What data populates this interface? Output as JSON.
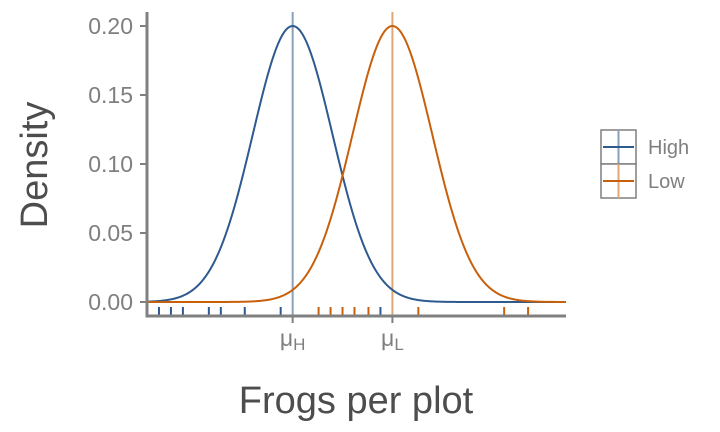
{
  "chart_data": {
    "type": "line",
    "title": "",
    "xlabel": "Frogs per plot",
    "ylabel": "Density",
    "ylim": [
      0,
      0.2
    ],
    "xlim": [
      0,
      21
    ],
    "yticks": [
      "0.00",
      "0.05",
      "0.10",
      "0.15",
      "0.20"
    ],
    "ytick_values": [
      0,
      0.05,
      0.1,
      0.15,
      0.2
    ],
    "xticks": [
      {
        "label": "μ",
        "sub": "H",
        "value": 7.3
      },
      {
        "label": "μ",
        "sub": "L",
        "value": 12.3
      }
    ],
    "series": [
      {
        "name": "High",
        "color": "#2e5a8f",
        "mean": 7.3,
        "sd": 2.0,
        "peak": 0.2,
        "rug": [
          0.6,
          1.2,
          1.8,
          3.1,
          3.7,
          4.9,
          6.7,
          11.7
        ]
      },
      {
        "name": "Low",
        "color": "#c8600b",
        "mean": 12.3,
        "sd": 2.0,
        "peak": 0.2,
        "rug": [
          8.6,
          9.2,
          9.8,
          10.4,
          11.1,
          13.6,
          17.9,
          19.1
        ]
      }
    ],
    "legend": {
      "position": "right",
      "entries": [
        "High",
        "Low"
      ]
    }
  }
}
